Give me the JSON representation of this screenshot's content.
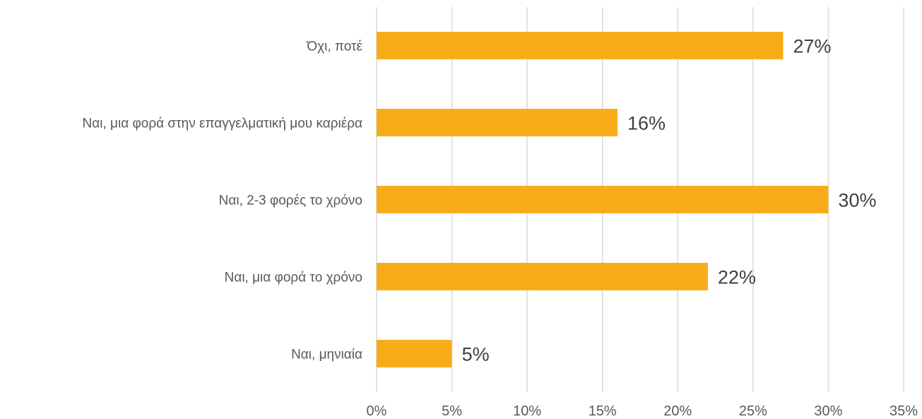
{
  "chart_data": {
    "type": "bar",
    "orientation": "horizontal",
    "title": "",
    "xlabel": "",
    "ylabel": "",
    "categories": [
      "Όχι, ποτέ",
      "Ναι, μια φορά στην επαγγελματική μου καριέρα",
      "Ναι, 2-3 φορές το χρόνο",
      "Ναι, μια φορά το χρόνο",
      "Ναι, μηνιαία"
    ],
    "values": [
      27,
      16,
      30,
      22,
      5
    ],
    "data_labels": [
      "27%",
      "16%",
      "30%",
      "22%",
      "5%"
    ],
    "xlim": [
      0,
      35
    ],
    "x_ticks": [
      0,
      5,
      10,
      15,
      20,
      25,
      30,
      35
    ],
    "x_tick_labels": [
      "0%",
      "5%",
      "10%",
      "15%",
      "20%",
      "25%",
      "30%",
      "35%"
    ],
    "grid": "vertical",
    "legend": "none",
    "colors": {
      "bar": "#F9AC1A",
      "grid": "#D9D9D9",
      "category_text": "#595959",
      "data_label_text": "#404040"
    }
  }
}
